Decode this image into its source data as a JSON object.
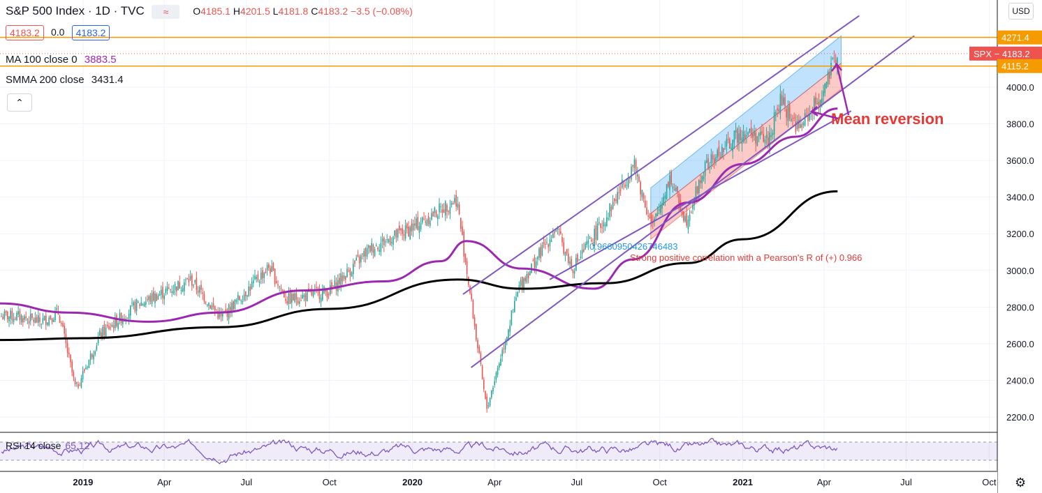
{
  "header": {
    "symbol_title": "S&P 500 Index · 1D · TVC",
    "ohlc": {
      "o_label": "O",
      "o": "4185.1",
      "h_label": "H",
      "h": "4201.5",
      "l_label": "L",
      "l": "4181.8",
      "c_label": "C",
      "c": "4183.2",
      "change": "−3.5 (−0.08%)"
    },
    "bid": "4183.2",
    "spread": "0.0",
    "ask": "4183.2"
  },
  "indicators": {
    "ma": {
      "label": "MA 100 close 0",
      "value": "3883.5"
    },
    "smma": {
      "label": "SMMA 200 close",
      "value": "3431.4"
    },
    "rsi": {
      "label": "RSI 14 close",
      "value": "65.12"
    }
  },
  "currency_button": "USD",
  "price_scale": {
    "ticks": [
      "4000.0",
      "3800.0",
      "3600.0",
      "3400.0",
      "3200.0",
      "3000.0",
      "2800.0",
      "2600.0",
      "2400.0",
      "2200.0"
    ],
    "badges": [
      {
        "text": "4271.4",
        "color": "#f59b00"
      },
      {
        "text": "SPX − 4183.2",
        "color": "#ef5350"
      },
      {
        "text": "4115.2",
        "color": "#f59b00"
      }
    ]
  },
  "time_scale": {
    "ticks": [
      {
        "label": "2019",
        "bold": true
      },
      {
        "label": "Apr",
        "bold": false
      },
      {
        "label": "Jul",
        "bold": false
      },
      {
        "label": "Oct",
        "bold": false
      },
      {
        "label": "2020",
        "bold": true
      },
      {
        "label": "Apr",
        "bold": false
      },
      {
        "label": "Jul",
        "bold": false
      },
      {
        "label": "Oct",
        "bold": false
      },
      {
        "label": "2021",
        "bold": true
      },
      {
        "label": "Apr",
        "bold": false
      },
      {
        "label": "Jul",
        "bold": false
      },
      {
        "label": "Oct",
        "bold": false
      }
    ]
  },
  "annotations": {
    "pearson_value": "0.9660950426746483",
    "correlation_note": "Strong positive correlation with a Pearson's R of (+) 0.966",
    "mean_reversion": "Mean reversion"
  },
  "colors": {
    "up": "#26a69a",
    "down": "#ef5350",
    "ma100": "#9c27b0",
    "smma200": "#000000",
    "channel": "#7e57c2",
    "orange": "#f59b00",
    "rsi": "#7e57c2"
  },
  "chart_data": {
    "type": "candlestick",
    "title": "S&P 500 Index · 1D · TVC",
    "x_range": [
      "2018-10",
      "2021-10"
    ],
    "ylim": [
      2150,
      4400
    ],
    "series": [
      {
        "name": "SPX",
        "x": [
          "2018-10-20",
          "2018-11-15",
          "2018-12-05",
          "2018-12-24",
          "2019-01-20",
          "2019-03-01",
          "2019-04-30",
          "2019-06-03",
          "2019-07-26",
          "2019-08-15",
          "2019-10-02",
          "2019-11-15",
          "2019-12-31",
          "2020-02-19",
          "2020-03-23",
          "2020-04-29",
          "2020-06-08",
          "2020-06-26",
          "2020-07-31",
          "2020-09-02",
          "2020-09-23",
          "2020-10-12",
          "2020-10-30",
          "2020-11-20",
          "2020-12-31",
          "2021-01-29",
          "2021-02-12",
          "2021-03-04",
          "2021-03-31",
          "2021-04-16"
        ],
        "values": [
          2750,
          2720,
          2770,
          2350,
          2650,
          2810,
          2950,
          2740,
          3020,
          2840,
          2890,
          3120,
          3230,
          3390,
          2240,
          2920,
          3230,
          3010,
          3270,
          3580,
          3230,
          3510,
          3270,
          3560,
          3760,
          3710,
          3930,
          3770,
          3970,
          4185
        ]
      },
      {
        "name": "MA 100 close 0",
        "x": [
          "2018-10-01",
          "2018-12-15",
          "2019-03-15",
          "2019-06-01",
          "2019-09-01",
          "2019-12-01",
          "2020-02-01",
          "2020-03-01",
          "2020-05-01",
          "2020-07-20",
          "2020-09-01",
          "2020-11-01",
          "2021-01-01",
          "2021-03-01",
          "2021-04-16"
        ],
        "values": [
          2820,
          2770,
          2720,
          2770,
          2890,
          2940,
          3050,
          3160,
          3010,
          2900,
          3060,
          3370,
          3580,
          3730,
          3883.5
        ]
      },
      {
        "name": "SMMA 200 close",
        "x": [
          "2018-10-01",
          "2019-01-01",
          "2019-06-01",
          "2019-10-01",
          "2020-02-20",
          "2020-05-01",
          "2020-08-01",
          "2020-11-01",
          "2021-01-01",
          "2021-04-16"
        ],
        "values": [
          2620,
          2630,
          2690,
          2790,
          2950,
          2900,
          2930,
          3040,
          3170,
          3431.4
        ]
      }
    ],
    "price_lines": [
      4271.4,
      4115.2
    ],
    "last_price": 4183.2,
    "channel": {
      "upper": {
        "x": [
          "2020-02-26",
          "2021-05-10"
        ],
        "y": [
          2870,
          4390
        ]
      },
      "mid": {
        "x": [
          "2020-03-06",
          "2021-07-10"
        ],
        "y": [
          2470,
          4280
        ]
      },
      "lower": {
        "x": [
          "2020-06-01",
          "2021-05-01"
        ],
        "y": [
          2950,
          3870
        ]
      }
    },
    "regression": {
      "start": "2020-09-21",
      "end": "2021-04-20",
      "pearson_r": 0.966
    },
    "rsi": {
      "name": "RSI 14 close",
      "last": 65.12,
      "band": [
        30,
        70
      ]
    },
    "grid": true
  }
}
